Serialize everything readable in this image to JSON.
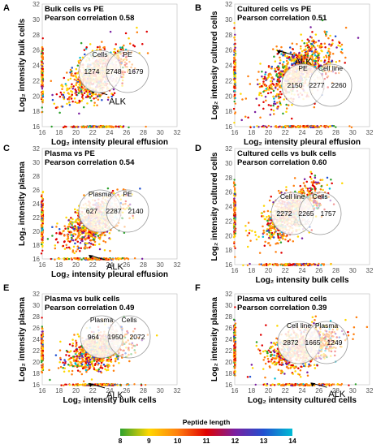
{
  "chart_data": [
    {
      "panel": "A",
      "type": "scatter",
      "title": "Bulk cells vs PE",
      "subtitle": "Pearson correlation 0.58",
      "xlabel": "Log₂ intensity pleural effusion",
      "ylabel": "Log₂ intensity bulk cells",
      "xlim": [
        16,
        32
      ],
      "ylim": [
        16,
        32
      ],
      "xticks": [
        "16",
        "18",
        "20",
        "22",
        "24",
        "26",
        "28",
        "30",
        "32"
      ],
      "yticks": [
        "16",
        "18",
        "20",
        "22",
        "24",
        "26",
        "28",
        "30",
        "32"
      ],
      "pearson": 0.58,
      "center": [
        22.5,
        22.8
      ],
      "spread": [
        1.9,
        1.8
      ],
      "annotation": {
        "label": "ALK",
        "x": 21.8,
        "y": 20.8
      },
      "venn": {
        "left_label": "Cells",
        "right_label": "PE",
        "left_only": "1274",
        "both": "2748",
        "right_only": "1679"
      }
    },
    {
      "panel": "B",
      "type": "scatter",
      "title": "Cultured cells vs PE",
      "subtitle": "Pearson correlation 0.51",
      "xlabel": "Log₂ intensity pleural effusion",
      "ylabel": "Log₂ intensity cultured cells",
      "xlim": [
        16,
        32
      ],
      "ylim": [
        16,
        32
      ],
      "xticks": [
        "16",
        "18",
        "20",
        "22",
        "24",
        "26",
        "28",
        "30",
        "32"
      ],
      "yticks": [
        "16",
        "18",
        "20",
        "22",
        "24",
        "26",
        "28",
        "30",
        "32"
      ],
      "pearson": 0.51,
      "center": [
        23.5,
        23.2
      ],
      "spread": [
        2.2,
        2.1
      ],
      "annotation": {
        "label": "ALK",
        "x": 21.0,
        "y": 26.0
      },
      "venn": {
        "left_label": "PE",
        "right_label": "Cell line",
        "left_only": "2150",
        "both": "2277",
        "right_only": "2260"
      }
    },
    {
      "panel": "C",
      "type": "scatter",
      "title": "Plasma vs PE",
      "subtitle": "Pearson correlation 0.54",
      "xlabel": "Log₂ intensity pleural effusion",
      "ylabel": "Log₂ intensity plasma",
      "xlim": [
        16,
        32
      ],
      "ylim": [
        16,
        32
      ],
      "xticks": [
        "16",
        "18",
        "20",
        "22",
        "24",
        "26",
        "28",
        "30",
        "32"
      ],
      "yticks": [
        "16",
        "18",
        "20",
        "22",
        "24",
        "26",
        "28",
        "30",
        "32"
      ],
      "pearson": 0.54,
      "center": [
        22.2,
        21.5
      ],
      "spread": [
        1.8,
        1.8
      ],
      "annotation": {
        "label": "ALK",
        "x": 21.5,
        "y": 16.6
      },
      "venn": {
        "left_label": "Plasma",
        "right_label": "PE",
        "left_only": "627",
        "both": "2287",
        "right_only": "2140"
      }
    },
    {
      "panel": "D",
      "type": "scatter",
      "title": "Cultured cells vs bulk cells",
      "subtitle": "Pearson correlation 0.60",
      "xlabel": "Log₂ intensity bulk cells",
      "ylabel": "Log₂ intensity cultured cells",
      "xlim": [
        16,
        32
      ],
      "ylim": [
        16,
        32
      ],
      "xticks": [
        "16",
        "18",
        "20",
        "22",
        "24",
        "26",
        "28",
        "30",
        "32"
      ],
      "yticks": [
        "16",
        "18",
        "20",
        "22",
        "24",
        "26",
        "28",
        "30",
        "32"
      ],
      "pearson": 0.6,
      "center": [
        22.8,
        23.2
      ],
      "spread": [
        1.8,
        1.9
      ],
      "annotation": {
        "label": "ALK",
        "x": 20.8,
        "y": 23.5
      },
      "venn": {
        "left_label": "Cell line",
        "right_label": "Cells",
        "left_only": "2272",
        "both": "2265",
        "right_only": "1757"
      }
    },
    {
      "panel": "E",
      "type": "scatter",
      "title": "Plasma vs bulk cells",
      "subtitle": "Pearson correlation 0.49",
      "xlabel": "Log₂ intensity bulk cells",
      "ylabel": "Log₂ intensity plasma",
      "xlim": [
        16,
        32
      ],
      "ylim": [
        16,
        32
      ],
      "xticks": [
        "16",
        "18",
        "20",
        "22",
        "24",
        "26",
        "28",
        "30",
        "32"
      ],
      "yticks": [
        "16",
        "18",
        "20",
        "22",
        "24",
        "26",
        "28",
        "30",
        "32"
      ],
      "pearson": 0.49,
      "center": [
        22.8,
        22.2
      ],
      "spread": [
        1.8,
        1.8
      ],
      "annotation": {
        "label": "ALK",
        "x": 21.5,
        "y": 16.3
      },
      "venn": {
        "left_label": "Plasma",
        "right_label": "Cells",
        "left_only": "964",
        "both": "1950",
        "right_only": "2072"
      }
    },
    {
      "panel": "F",
      "type": "scatter",
      "title": "Plasma vs cultured cells",
      "subtitle": "Pearson correlation 0.39",
      "xlabel": "Log₂ intensity cultured cells",
      "ylabel": "Log₂ intensity plasma",
      "xlim": [
        16,
        32
      ],
      "ylim": [
        16,
        32
      ],
      "xticks": [
        "16",
        "18",
        "20",
        "22",
        "24",
        "26",
        "28",
        "30",
        "32"
      ],
      "yticks": [
        "16",
        "18",
        "20",
        "22",
        "24",
        "26",
        "28",
        "30",
        "32"
      ],
      "pearson": 0.39,
      "center": [
        24.0,
        22.5
      ],
      "spread": [
        2.0,
        1.9
      ],
      "annotation": {
        "label": "ALK",
        "x": 25.0,
        "y": 16.4
      },
      "venn": {
        "left_label": "Cell line",
        "right_label": "Plasma",
        "left_only": "2872",
        "both": "1665",
        "right_only": "1249"
      }
    }
  ],
  "colorbar": {
    "label": "Peptide length",
    "ticks": [
      "8",
      "9",
      "10",
      "11",
      "12",
      "13",
      "14"
    ],
    "colors": [
      "#2ca02c",
      "#ffd700",
      "#ff7f0e",
      "#e00000",
      "#7a1fa0",
      "#2050d0",
      "#00bcd4"
    ]
  }
}
